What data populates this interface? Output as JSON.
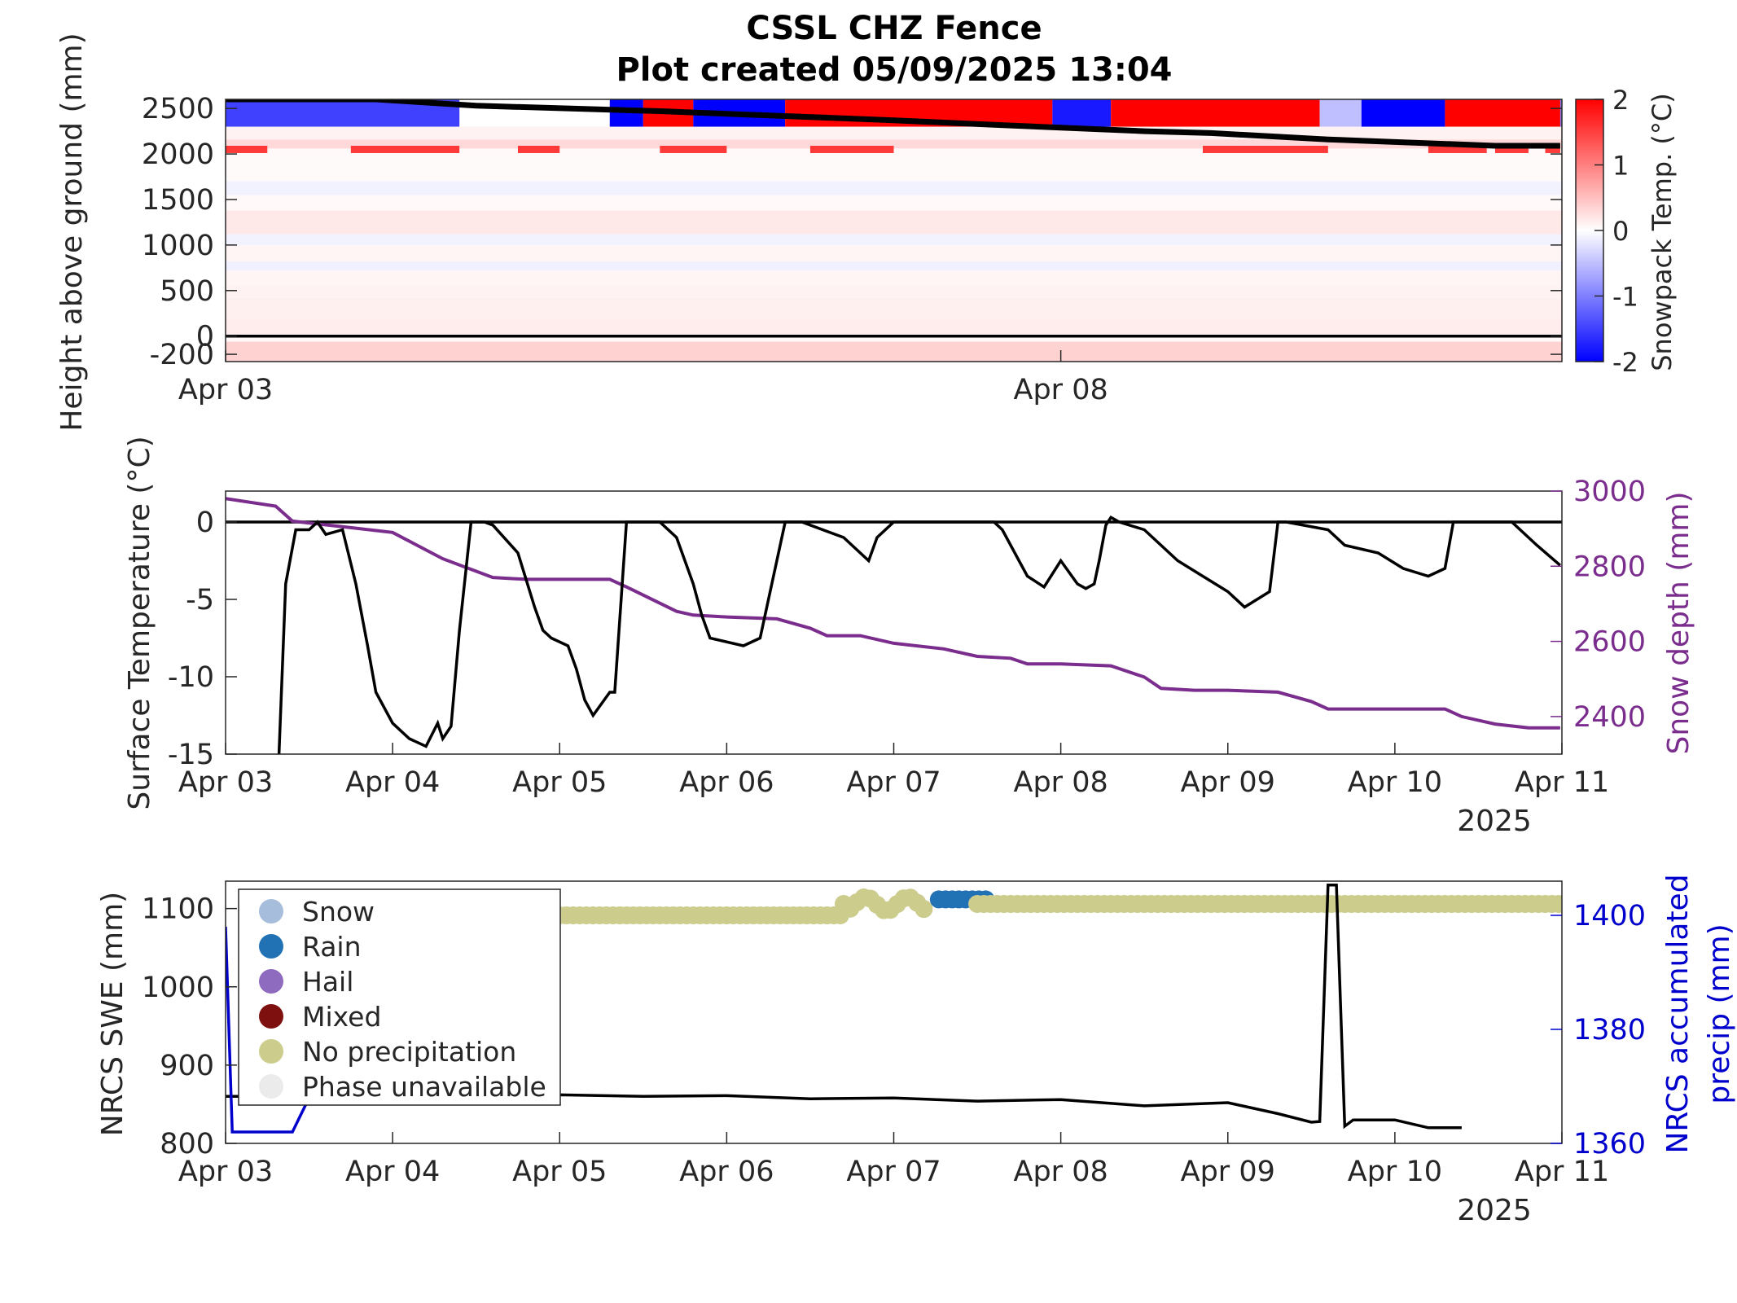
{
  "title": "CSSL CHZ Fence",
  "subtitle": "Plot created 05/09/2025 13:04",
  "colors": {
    "swe_line": "#000000",
    "accum_precip_line": "#0000cd",
    "snow_depth_line": "#7b2d8e",
    "surface_temp_line": "#000000",
    "right_axis_precip": "#0000cd",
    "right_axis_depth": "#7b2d8e",
    "phase_snow": "#a6bddb",
    "phase_rain": "#2171b5",
    "phase_hail": "#8e6bbf",
    "phase_mixed": "#7f1010",
    "phase_none": "#cccc8c",
    "phase_unavailable": "#ebebeb"
  },
  "chart_data": [
    {
      "type": "heatmap",
      "panel": "snowpack-temperature",
      "ylabel": "Height above ground (mm)",
      "colorbar_label": "Snowpack Temp. (°C)",
      "colorbar_ticks": [
        "2",
        "1",
        "0",
        "-1",
        "-2"
      ],
      "clim": [
        -2,
        2
      ],
      "colormap": "blue-white-red",
      "x_range": [
        "2025-04-03",
        "2025-04-11"
      ],
      "x_tick_labels": [
        "Apr 03",
        "Apr 08"
      ],
      "x_tick_days": [
        0,
        5
      ],
      "y_tick_labels": [
        "2500",
        "2000",
        "1500",
        "1000",
        "500",
        "0",
        "-200"
      ],
      "y_tick_values": [
        2500,
        2000,
        1500,
        1000,
        500,
        0,
        -200
      ],
      "ylim": [
        -280,
        2600
      ],
      "snow_surface_line": {
        "days": [
          0,
          0.9,
          1.5,
          2.6,
          3.3,
          4.0,
          4.6,
          5.5,
          5.9,
          6.6,
          7.6,
          7.99
        ],
        "height_mm": [
          2600,
          2600,
          2530,
          2470,
          2420,
          2370,
          2320,
          2250,
          2230,
          2160,
          2090,
          2090
        ]
      },
      "warm_layer_segments_days": [
        [
          0,
          0.25
        ],
        [
          0.75,
          1.4
        ],
        [
          1.75,
          2.0
        ],
        [
          2.6,
          3.0
        ],
        [
          3.5,
          4.0
        ],
        [
          5.85,
          6.6
        ],
        [
          7.2,
          7.55
        ],
        [
          7.6,
          7.8
        ],
        [
          7.9,
          7.99
        ],
        [
          8.1,
          8.85
        ]
      ],
      "surface_band_cells": [
        {
          "start_day": 0,
          "end_day": 1.4,
          "temp_c": -1.5
        },
        {
          "start_day": 2.3,
          "end_day": 2.5,
          "temp_c": -2
        },
        {
          "start_day": 2.5,
          "end_day": 2.8,
          "temp_c": 2
        },
        {
          "start_day": 2.8,
          "end_day": 3.35,
          "temp_c": -2
        },
        {
          "start_day": 3.35,
          "end_day": 4.95,
          "temp_c": 2
        },
        {
          "start_day": 4.95,
          "end_day": 5.3,
          "temp_c": -1.8
        },
        {
          "start_day": 5.3,
          "end_day": 6.55,
          "temp_c": 2
        },
        {
          "start_day": 6.55,
          "end_day": 6.8,
          "temp_c": -0.5
        },
        {
          "start_day": 6.8,
          "end_day": 7.3,
          "temp_c": -2
        },
        {
          "start_day": 7.3,
          "end_day": 7.99,
          "temp_c": 2
        },
        {
          "start_day": 7.99,
          "end_day": 8.0,
          "temp_c": -1
        }
      ]
    },
    {
      "type": "line",
      "panel": "surface-temperature-and-depth",
      "ylabel": "Surface Temperature (°C)",
      "y2label": "Snow depth (mm)",
      "ylim": [
        -15,
        2
      ],
      "y2lim": [
        2300,
        3000
      ],
      "y_tick_labels": [
        "0",
        "-5",
        "-10",
        "-15"
      ],
      "y_tick_values": [
        0,
        -5,
        -10,
        -15
      ],
      "y2_tick_labels": [
        "3000",
        "2800",
        "2600",
        "2400"
      ],
      "y2_tick_values": [
        3000,
        2800,
        2600,
        2400
      ],
      "x_tick_labels": [
        "Apr 03",
        "Apr 04",
        "Apr 05",
        "Apr 06",
        "Apr 07",
        "Apr 08",
        "Apr 09",
        "Apr 10",
        "Apr 11"
      ],
      "x_year_label": "2025",
      "x_days": [
        0,
        1,
        2,
        3,
        4,
        5,
        6,
        7,
        8
      ],
      "series": [
        {
          "name": "Surface Temperature",
          "axis": "left",
          "x_day": [
            0.32,
            0.36,
            0.42,
            0.5,
            0.55,
            0.6,
            0.7,
            0.78,
            0.85,
            0.9,
            1.0,
            1.1,
            1.2,
            1.27,
            1.3,
            1.35,
            1.4,
            1.47,
            1.55,
            1.6,
            1.75,
            1.85,
            1.9,
            1.95,
            2.05,
            2.1,
            2.15,
            2.2,
            2.3,
            2.33,
            2.4,
            2.6,
            2.7,
            2.8,
            2.85,
            2.9,
            3.1,
            3.2,
            3.35,
            3.37,
            3.45,
            3.7,
            3.75,
            3.85,
            3.9,
            4.0,
            4.3,
            4.6,
            4.65,
            4.75,
            4.8,
            4.9,
            5.0,
            5.1,
            5.15,
            5.2,
            5.23,
            5.27,
            5.3,
            5.35,
            5.5,
            5.7,
            5.85,
            6.0,
            6.1,
            6.25,
            6.3,
            6.35,
            6.6,
            6.7,
            6.9,
            7.05,
            7.2,
            7.3,
            7.35,
            7.6,
            7.7,
            7.85,
            7.99
          ],
          "y": [
            -15,
            -4,
            -0.5,
            -0.5,
            0,
            -0.8,
            -0.5,
            -4,
            -8,
            -11,
            -13,
            -14,
            -14.5,
            -13,
            -14,
            -13.2,
            -7,
            0,
            0,
            -0.2,
            -2,
            -5.5,
            -7,
            -7.5,
            -8,
            -9.5,
            -11.5,
            -12.5,
            -11,
            -11,
            0,
            0,
            -1,
            -4,
            -6,
            -7.5,
            -8,
            -7.5,
            0,
            0,
            0,
            -1,
            -1.5,
            -2.5,
            -1,
            0,
            0,
            0,
            -0.5,
            -2.5,
            -3.5,
            -4.2,
            -2.5,
            -4,
            -4.3,
            -4,
            -2.5,
            -0.2,
            0.3,
            0,
            -0.5,
            -2.5,
            -3.5,
            -4.5,
            -5.5,
            -4.5,
            0,
            0,
            -0.5,
            -1.5,
            -2,
            -3,
            -3.5,
            -3,
            0,
            0,
            0,
            -1.5,
            -2.8
          ]
        },
        {
          "name": "Snow depth",
          "axis": "right",
          "x_day": [
            0,
            0.3,
            0.4,
            0.7,
            1.0,
            1.3,
            1.6,
            1.8,
            2.0,
            2.3,
            2.4,
            2.7,
            2.8,
            3.0,
            3.3,
            3.5,
            3.6,
            3.8,
            4.0,
            4.3,
            4.5,
            4.7,
            4.8,
            5.0,
            5.3,
            5.5,
            5.6,
            5.8,
            6.0,
            6.3,
            6.5,
            6.6,
            6.8,
            7.0,
            7.3,
            7.4,
            7.6,
            7.8,
            7.99
          ],
          "y": [
            2980,
            2960,
            2920,
            2905,
            2890,
            2820,
            2770,
            2765,
            2765,
            2765,
            2745,
            2680,
            2670,
            2665,
            2660,
            2635,
            2615,
            2615,
            2595,
            2580,
            2560,
            2555,
            2540,
            2540,
            2535,
            2505,
            2475,
            2470,
            2470,
            2465,
            2440,
            2420,
            2420,
            2420,
            2420,
            2400,
            2380,
            2370,
            2370
          ]
        }
      ],
      "zero_line": 0
    },
    {
      "type": "line",
      "panel": "nrcs-swe-and-precip",
      "ylabel": "NRCS SWE (mm)",
      "y2label": "NRCS accumulated precip (mm)",
      "ylim": [
        800,
        1135
      ],
      "y2lim": [
        1360,
        1406
      ],
      "y_tick_labels": [
        "1100",
        "1000",
        "900",
        "800"
      ],
      "y_tick_values": [
        1100,
        1000,
        900,
        800
      ],
      "y2_tick_labels": [
        "1400",
        "1380",
        "1360"
      ],
      "y2_tick_values": [
        1400,
        1380,
        1360
      ],
      "x_tick_labels": [
        "Apr 03",
        "Apr 04",
        "Apr 05",
        "Apr 06",
        "Apr 07",
        "Apr 08",
        "Apr 09",
        "Apr 10",
        "Apr 11"
      ],
      "x_year_label": "2025",
      "x_days": [
        0,
        1,
        2,
        3,
        4,
        5,
        6,
        7,
        8
      ],
      "legend": [
        "Snow",
        "Rain",
        "Hail",
        "Mixed",
        "No precipitation",
        "Phase unavailable"
      ],
      "legend_location": "top-left",
      "series": [
        {
          "name": "NRCS SWE",
          "axis": "left",
          "x_day": [
            0,
            0.5,
            1.0,
            1.5,
            2.0,
            2.5,
            3.0,
            3.5,
            4.0,
            4.5,
            5.0,
            5.5,
            6.0,
            6.3,
            6.5,
            6.55,
            6.6,
            6.65,
            6.7,
            6.75,
            7.0,
            7.2,
            7.4
          ],
          "y": [
            860,
            860,
            860,
            860,
            862,
            860,
            861,
            857,
            858,
            854,
            856,
            848,
            852,
            838,
            827,
            828,
            1130,
            1130,
            822,
            830,
            830,
            820,
            820
          ]
        },
        {
          "name": "NRCS accumulated precip",
          "axis": "right",
          "x_day": [
            0,
            0.04,
            0.4,
            0.45,
            0.5
          ],
          "y": [
            1398,
            1362,
            1362,
            1365,
            1368
          ]
        }
      ],
      "phase_markers": [
        {
          "phase": "No precipitation",
          "start_day": 2.0,
          "end_day": 3.7,
          "y_mm": 1400
        },
        {
          "phase": "No precipitation",
          "start_day": 3.7,
          "end_day": 4.2,
          "y_mm": 1402
        },
        {
          "phase": "Rain",
          "start_day": 4.27,
          "end_day": 4.55,
          "y_mm": 1402.8
        },
        {
          "phase": "No precipitation",
          "start_day": 4.5,
          "end_day": 8.0,
          "y_mm": 1402
        }
      ]
    }
  ]
}
